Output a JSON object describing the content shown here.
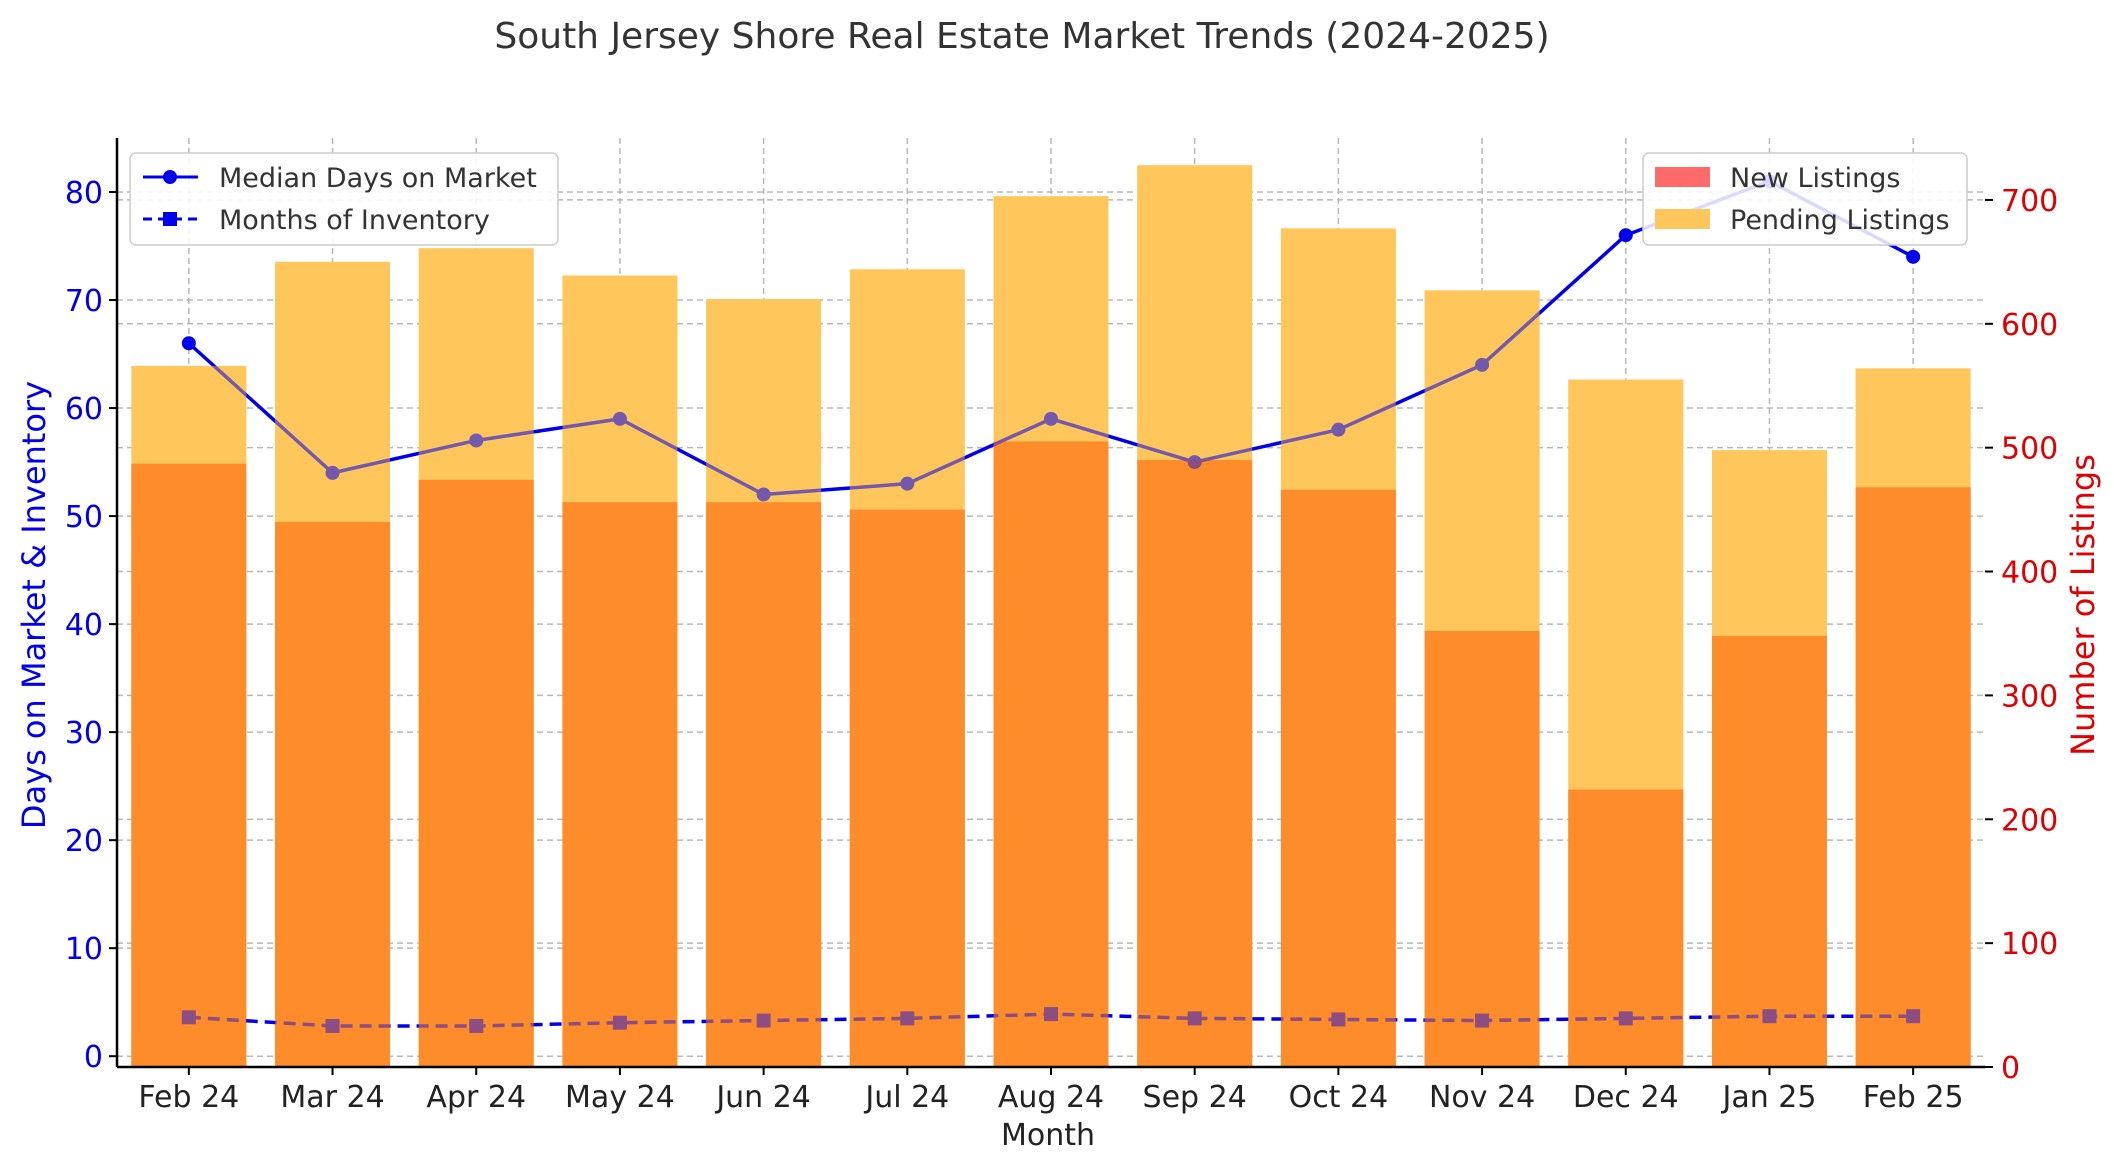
{
  "chart_data": {
    "type": "bar+line",
    "title": "South Jersey Shore Real Estate Market Trends (2024-2025)",
    "xlabel": "Month",
    "ylabel_left": "Days on Market & Inventory",
    "ylabel_right": "Number of Listings",
    "categories": [
      "Feb 24",
      "Mar 24",
      "Apr 24",
      "May 24",
      "Jun 24",
      "Jul 24",
      "Aug 24",
      "Sep 24",
      "Oct 24",
      "Nov 24",
      "Dec 24",
      "Jan 25",
      "Feb 25"
    ],
    "ylim_left": [
      -1,
      85
    ],
    "ylim_right": [
      0,
      750
    ],
    "yticks_left": [
      0,
      10,
      20,
      30,
      40,
      50,
      60,
      70,
      80
    ],
    "yticks_right": [
      0,
      100,
      200,
      300,
      400,
      500,
      600,
      700
    ],
    "grid": true,
    "line_series": [
      {
        "name": "Median Days on Market",
        "color": "#0000ee",
        "style": "solid",
        "marker": "circle",
        "values": [
          66,
          54,
          57,
          59,
          52,
          53,
          59,
          55,
          58,
          64,
          76,
          81,
          74
        ]
      },
      {
        "name": "Months of Inventory",
        "color": "#0000ee",
        "style": "dashed",
        "marker": "square",
        "values": [
          3.6,
          2.8,
          2.8,
          3.1,
          3.3,
          3.5,
          3.9,
          3.5,
          3.4,
          3.3,
          3.5,
          3.7,
          3.7
        ]
      }
    ],
    "bar_series": [
      {
        "name": "New Listings",
        "color": "#ff6a6a",
        "values": [
          487,
          440,
          474,
          456,
          456,
          450,
          505,
          490,
          466,
          352,
          224,
          348,
          468
        ]
      },
      {
        "name": "Pending Listings",
        "color": "#ffc65c",
        "values": [
          566,
          650,
          661,
          639,
          620,
          644,
          703,
          728,
          677,
          627,
          555,
          498,
          564
        ]
      }
    ],
    "legend_left": "top-left",
    "legend_right": "top-right",
    "colors": {
      "left_axis": "#0000ee",
      "right_axis": "#e00000",
      "overlap": "#ff8c2a"
    }
  }
}
